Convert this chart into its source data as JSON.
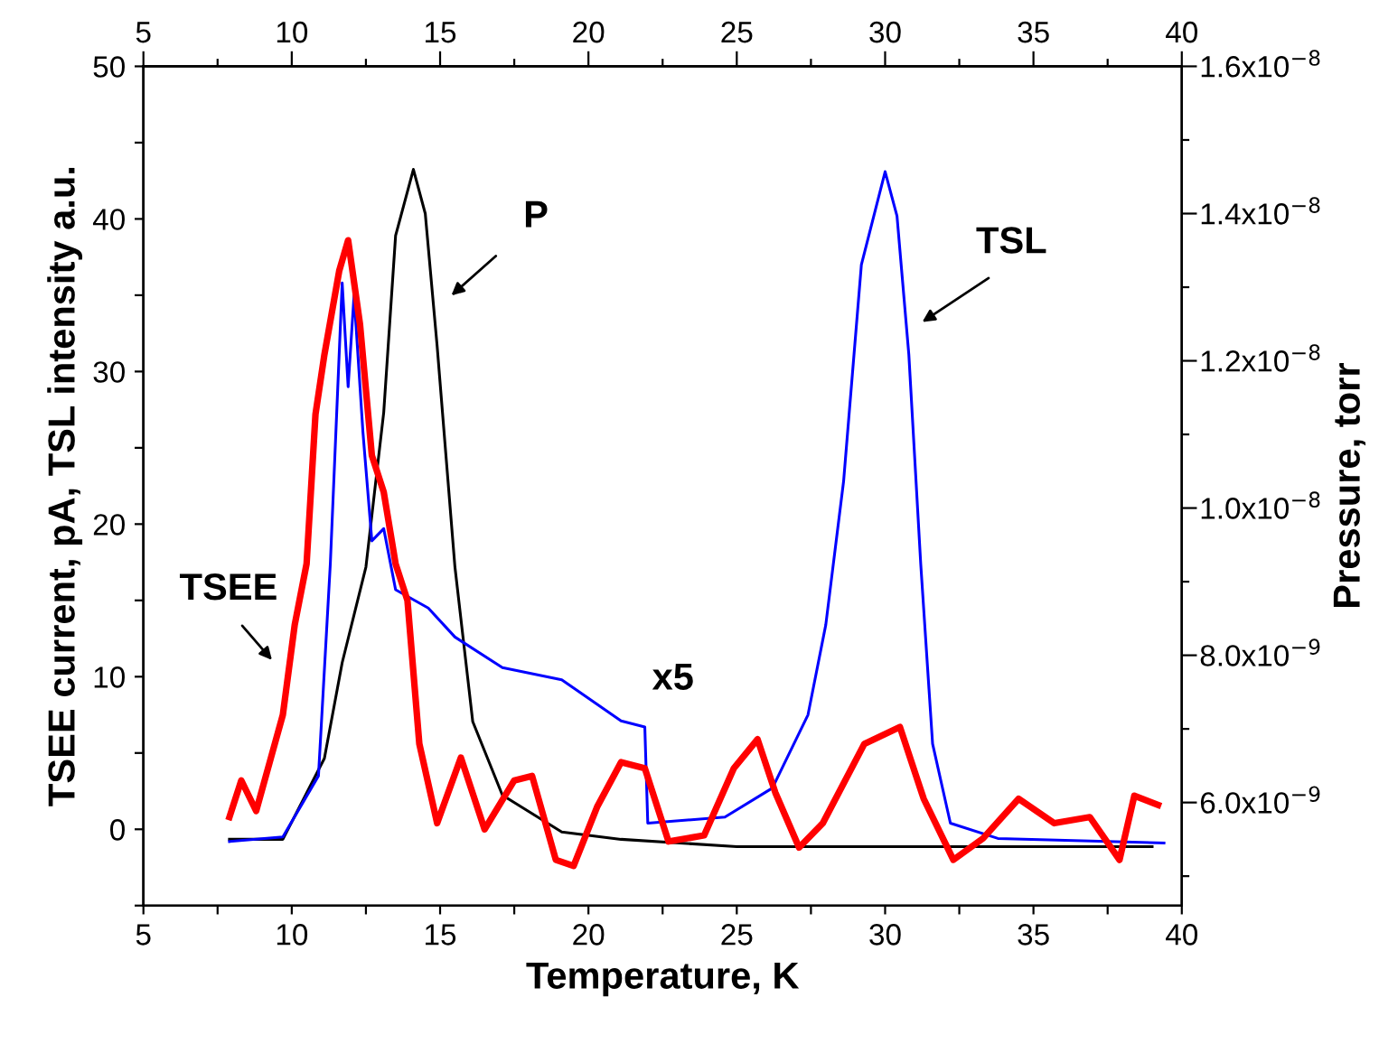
{
  "chart_data": {
    "type": "line",
    "xlabel": "Temperature, K",
    "ylabel": "TSEE current, pA, TSL intensity a.u.",
    "y2label": "Pressure, torr",
    "xlim": [
      5,
      40
    ],
    "xticks": [
      5,
      {
        "value": 7.5,
        "label": null
      },
      10,
      {
        "value": 12.5,
        "label": null
      },
      15,
      {
        "value": 17.5,
        "label": null
      },
      20,
      {
        "value": 22.5,
        "label": null
      },
      25,
      {
        "value": 27.5,
        "label": null
      },
      30,
      {
        "value": 32.5,
        "label": null
      },
      35,
      {
        "value": 37.5,
        "label": null
      },
      40
    ],
    "x2lim": [
      5,
      40
    ],
    "x2ticks": [
      5,
      {
        "value": 7.5,
        "label": null
      },
      10,
      {
        "value": 12.5,
        "label": null
      },
      15,
      {
        "value": 17.5,
        "label": null
      },
      20,
      {
        "value": 22.5,
        "label": null
      },
      25,
      {
        "value": 27.5,
        "label": null
      },
      30,
      {
        "value": 32.5,
        "label": null
      },
      35,
      {
        "value": 37.5,
        "label": null
      },
      40
    ],
    "ylim": [
      -5,
      50
    ],
    "yticks": [
      {
        "value": -5,
        "label": null
      },
      0,
      {
        "value": 5,
        "label": null
      },
      10,
      {
        "value": 15,
        "label": null
      },
      20,
      {
        "value": 25,
        "label": null
      },
      30,
      {
        "value": 35,
        "label": null
      },
      40,
      {
        "value": 45,
        "label": null
      },
      50
    ],
    "y2lim": [
      4.6e-09,
      1.6e-08
    ],
    "y2ticks": [
      {
        "value": 5e-09,
        "label": null
      },
      {
        "value": 6e-09,
        "label": "6.0x10$^{−9}$"
      },
      {
        "value": 7e-09,
        "label": null
      },
      {
        "value": 8e-09,
        "label": "8.0x10$^{−9}$"
      },
      {
        "value": 9e-09,
        "label": null
      },
      {
        "value": 1e-08,
        "label": "1.0x10$^{−8}$"
      },
      {
        "value": 1.1e-08,
        "label": null
      },
      {
        "value": 1.2e-08,
        "label": "1.2x10$^{−8}$"
      },
      {
        "value": 1.3e-08,
        "label": null
      },
      {
        "value": 1.4e-08,
        "label": "1.4x10$^{−8}$"
      },
      {
        "value": 1.5e-08,
        "label": null
      },
      {
        "value": 1.6e-08,
        "label": "1.6x10$^{−8}$"
      }
    ],
    "grid": false,
    "marker": "none",
    "line_style": "solid",
    "series": [
      {
        "color": "#000000",
        "axis": "y2",
        "x": [
          7.9,
          9.7,
          11.1,
          11.7,
          12.5,
          13.1,
          13.5,
          14.1,
          14.5,
          14.9,
          15.5,
          16.1,
          17.1,
          19.1,
          21.1,
          25,
          30,
          35,
          39
        ],
        "values": [
          5.5e-09,
          5.5e-09,
          6.6e-09,
          7.9e-09,
          9.2e-09,
          1.13e-08,
          1.37e-08,
          1.46e-08,
          1.4e-08,
          1.22e-08,
          9.2e-09,
          7.1e-09,
          6.1e-09,
          5.6e-09,
          5.5e-09,
          5.4e-09,
          5.4e-09,
          5.4e-09,
          5.4e-09
        ]
      },
      {
        "color": "#0000ff",
        "x": [
          7.9,
          9.7,
          10.9,
          11.3,
          11.7,
          11.9,
          12.1,
          12.4,
          12.7,
          13.1,
          13.5,
          14.6,
          15.5,
          17.1,
          19.1,
          21.1,
          21.9,
          22.0,
          24.6,
          26.2,
          27.4,
          28.0,
          28.6,
          29.2,
          30.0,
          30.4,
          30.8,
          31.2,
          31.6,
          32.2,
          33.8,
          39.4
        ],
        "values": [
          -0.8,
          -0.5,
          3.5,
          17.4,
          35.8,
          29,
          35,
          26,
          18.9,
          19.7,
          15.7,
          14.5,
          12.6,
          10.6,
          9.8,
          7.1,
          6.7,
          0.4,
          0.8,
          2.7,
          7.5,
          13.4,
          22.8,
          37,
          43.1,
          40.2,
          31.1,
          17.4,
          5.6,
          0.4,
          -0.6,
          -0.9
        ]
      },
      {
        "color": "#ff0000",
        "x": [
          7.9,
          8.3,
          8.8,
          9.3,
          9.7,
          10.1,
          10.5,
          10.8,
          11.1,
          11.6,
          11.9,
          12.3,
          12.7,
          13.1,
          13.5,
          13.9,
          14.3,
          14.9,
          15.7,
          16.5,
          17.5,
          18.1,
          18.9,
          19.5,
          20.3,
          21.1,
          21.9,
          22.7,
          23.9,
          24.9,
          25.7,
          26.3,
          27.1,
          27.9,
          29.3,
          30.5,
          31.3,
          32.3,
          33.3,
          34.5,
          35.7,
          36.9,
          37.9,
          38.4,
          39.2
        ],
        "values": [
          0.8,
          3.2,
          1.2,
          4.7,
          7.5,
          13.4,
          17.4,
          27.2,
          31.1,
          36.6,
          38.6,
          33.1,
          24.5,
          22.1,
          17.4,
          15,
          5.6,
          0.4,
          4.7,
          0,
          3.2,
          3.5,
          -2,
          -2.4,
          1.5,
          4.4,
          4,
          -0.8,
          -0.4,
          4,
          5.9,
          2.4,
          -1.2,
          0.4,
          5.6,
          6.7,
          2,
          -2,
          -0.6,
          2,
          0.4,
          0.8,
          -2,
          2.2,
          1.6
        ]
      }
    ],
    "annotations": [
      "P",
      "TSL",
      "TSEE",
      "x5"
    ]
  }
}
